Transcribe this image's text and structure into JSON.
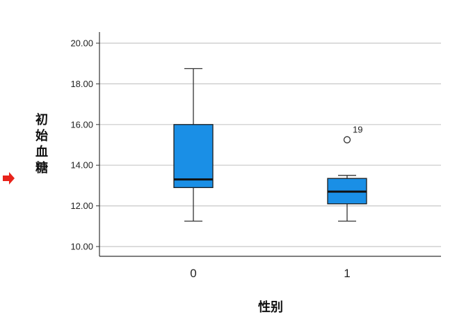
{
  "chart_data": {
    "type": "boxplot",
    "xlabel": "性别",
    "ylabel": "初始血糖",
    "ylim": [
      9.5,
      20.5
    ],
    "y_ticks": [
      10,
      12,
      14,
      16,
      18,
      20
    ],
    "y_tick_labels": [
      "10.00",
      "12.00",
      "14.00",
      "16.00",
      "18.00",
      "20.00"
    ],
    "grid": true,
    "categories": [
      "0",
      "1"
    ],
    "boxes": [
      {
        "category": "0",
        "min": 11.25,
        "q1": 12.9,
        "median": 13.3,
        "q3": 16.0,
        "max": 18.75,
        "outliers": []
      },
      {
        "category": "1",
        "min": 11.25,
        "q1": 12.1,
        "median": 12.7,
        "q3": 13.35,
        "max": 13.5,
        "outliers": [
          {
            "value": 15.25,
            "label": "19"
          }
        ]
      }
    ],
    "colors": {
      "box_fill": "#1a8fe6",
      "box_stroke": "#1c1c1c",
      "grid": "#c8c8c8",
      "marker_arrow": "#e8231b"
    }
  }
}
